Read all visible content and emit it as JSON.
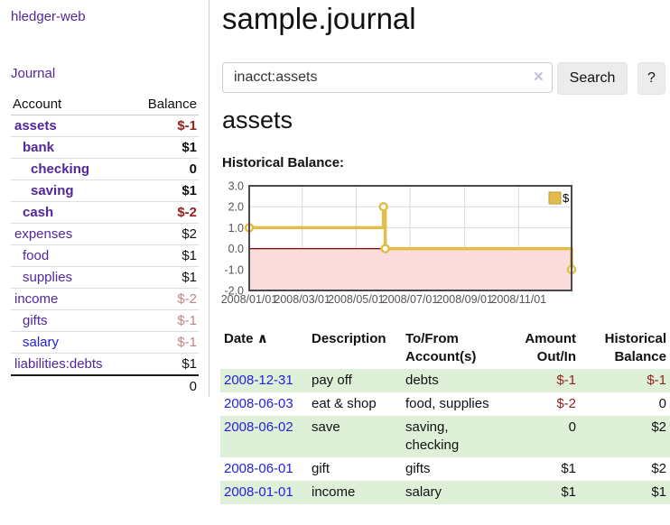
{
  "colors": {
    "purple": "#52279b",
    "blue": "#2323d8",
    "neg-strong": "#941f1f",
    "neg-soft": "#c08484",
    "row-green": "#dff0d8"
  },
  "sidebar": {
    "app_title": "hledger-web",
    "journal_link": "Journal",
    "header": {
      "account": "Account",
      "balance": "Balance"
    },
    "accounts": [
      {
        "name": "assets",
        "indent": 0,
        "bold": true,
        "balance": "$-1"
      },
      {
        "name": "bank",
        "indent": 1,
        "bold": true,
        "balance": "$1"
      },
      {
        "name": "checking",
        "indent": 2,
        "bold": true,
        "balance": "0"
      },
      {
        "name": "saving",
        "indent": 2,
        "bold": true,
        "balance": "$1"
      },
      {
        "name": "cash",
        "indent": 1,
        "bold": true,
        "balance": "$-2"
      },
      {
        "name": "expenses",
        "indent": 0,
        "bold": false,
        "balance": "$2"
      },
      {
        "name": "food",
        "indent": 1,
        "bold": false,
        "balance": "$1"
      },
      {
        "name": "supplies",
        "indent": 1,
        "bold": false,
        "balance": "$1"
      },
      {
        "name": "income",
        "indent": 0,
        "bold": false,
        "balance": "$-2"
      },
      {
        "name": "gifts",
        "indent": 1,
        "bold": false,
        "balance": "$-1"
      },
      {
        "name": "salary",
        "indent": 1,
        "bold": false,
        "balance": "$-1",
        "link_style": "blue"
      },
      {
        "name": "liabilities:debts",
        "indent": 0,
        "bold": false,
        "balance": "$1"
      }
    ],
    "total": "0"
  },
  "main": {
    "title": "sample.journal",
    "search": {
      "value": "inacct:assets",
      "clear_icon": "×",
      "button_label": "Search",
      "help_label": "?"
    },
    "account_heading": "assets",
    "chart_label": "Historical Balance:"
  },
  "chart_data": {
    "type": "line",
    "step": true,
    "title": "Historical Balance:",
    "legend": "$",
    "legend_position": "top-right",
    "grid": true,
    "ylim": [
      -2,
      3
    ],
    "yticks": [
      "3.0",
      "2.0",
      "1.0",
      "0.0",
      "-1.0",
      "-2.0"
    ],
    "xrange": [
      "2008-01-01",
      "2008-12-31"
    ],
    "xticks": [
      "2008/01/01",
      "2008/03/01",
      "2008/05/01",
      "2008/07/01",
      "2008/09/01",
      "2008/11/01"
    ],
    "series": [
      {
        "name": "$",
        "color": "#e3bd4c",
        "points": [
          [
            "2008-01-01",
            1
          ],
          [
            "2008-06-01",
            2
          ],
          [
            "2008-06-03",
            0
          ],
          [
            "2008-12-31",
            -1
          ]
        ]
      }
    ],
    "negative_fill": "#fbdcdc",
    "zero_line_color": "#800000"
  },
  "register": {
    "headers": {
      "date": "Date",
      "sort_icon": "∧",
      "description": "Description",
      "accounts": "To/From Account(s)",
      "amount": "Amount Out/In",
      "balance": "Historical Balance"
    },
    "rows": [
      {
        "date": "2008-12-31",
        "description": "pay off",
        "accounts": "debts",
        "amount": "$-1",
        "balance": "$-1"
      },
      {
        "date": "2008-06-03",
        "description": "eat & shop",
        "accounts": "food, supplies",
        "amount": "$-2",
        "balance": "0"
      },
      {
        "date": "2008-06-02",
        "description": "save",
        "accounts": "saving,\nchecking",
        "amount": "0",
        "balance": "$2"
      },
      {
        "date": "2008-06-01",
        "description": "gift",
        "accounts": "gifts",
        "amount": "$1",
        "balance": "$2"
      },
      {
        "date": "2008-01-01",
        "description": "income",
        "accounts": "salary",
        "amount": "$1",
        "balance": "$1"
      }
    ]
  }
}
